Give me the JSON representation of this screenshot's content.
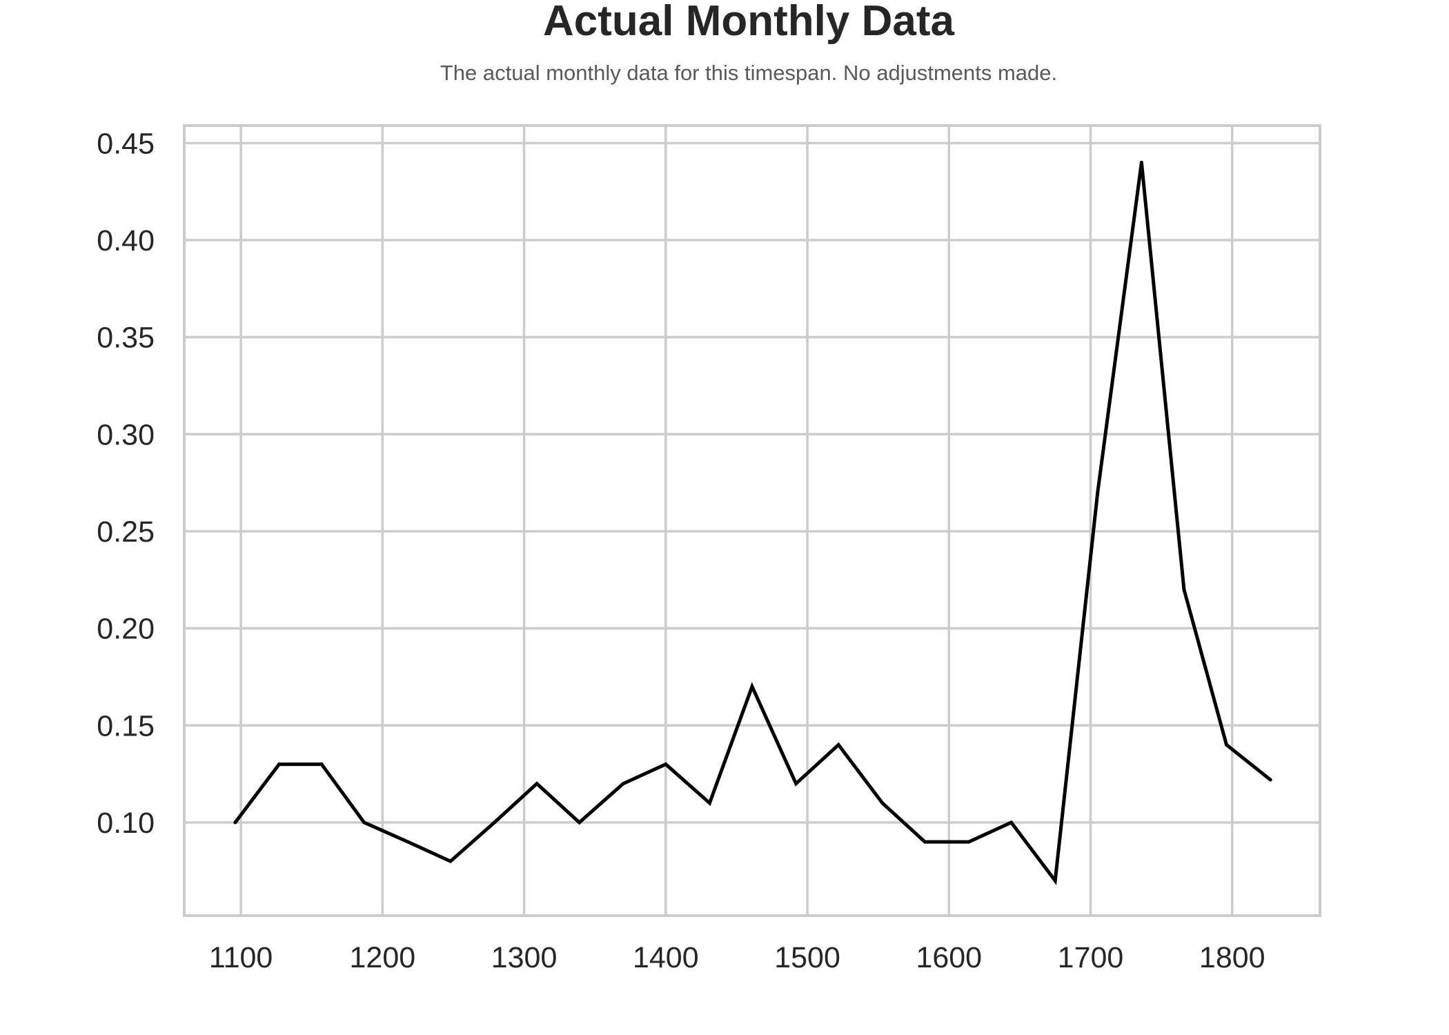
{
  "chart_data": {
    "type": "line",
    "title": "Actual Monthly Data",
    "subtitle": "The actual monthly data for this timespan. No adjustments made.",
    "xlabel": "",
    "ylabel": "",
    "xlim": [
      1060,
      1862
    ],
    "ylim": [
      0.052,
      0.459
    ],
    "xticks": [
      1100,
      1200,
      1300,
      1400,
      1500,
      1600,
      1700,
      1800
    ],
    "yticks": [
      0.1,
      0.15,
      0.2,
      0.25,
      0.3,
      0.35,
      0.4,
      0.45
    ],
    "ytick_labels": [
      "0.10",
      "0.15",
      "0.20",
      "0.25",
      "0.30",
      "0.35",
      "0.40",
      "0.45"
    ],
    "grid": true,
    "series": [
      {
        "color": "#000000",
        "x": [
          1096,
          1127,
          1157,
          1187,
          1218,
          1248,
          1279,
          1309,
          1339,
          1370,
          1400,
          1431,
          1461,
          1492,
          1522,
          1553,
          1583,
          1614,
          1644,
          1675,
          1705,
          1736,
          1766,
          1796,
          1827
        ],
        "y": [
          0.1,
          0.13,
          0.13,
          0.1,
          0.09,
          0.08,
          0.1,
          0.12,
          0.1,
          0.12,
          0.13,
          0.11,
          0.17,
          0.12,
          0.14,
          0.11,
          0.09,
          0.09,
          0.1,
          0.07,
          0.27,
          0.44,
          0.22,
          0.14,
          0.122
        ]
      }
    ]
  }
}
